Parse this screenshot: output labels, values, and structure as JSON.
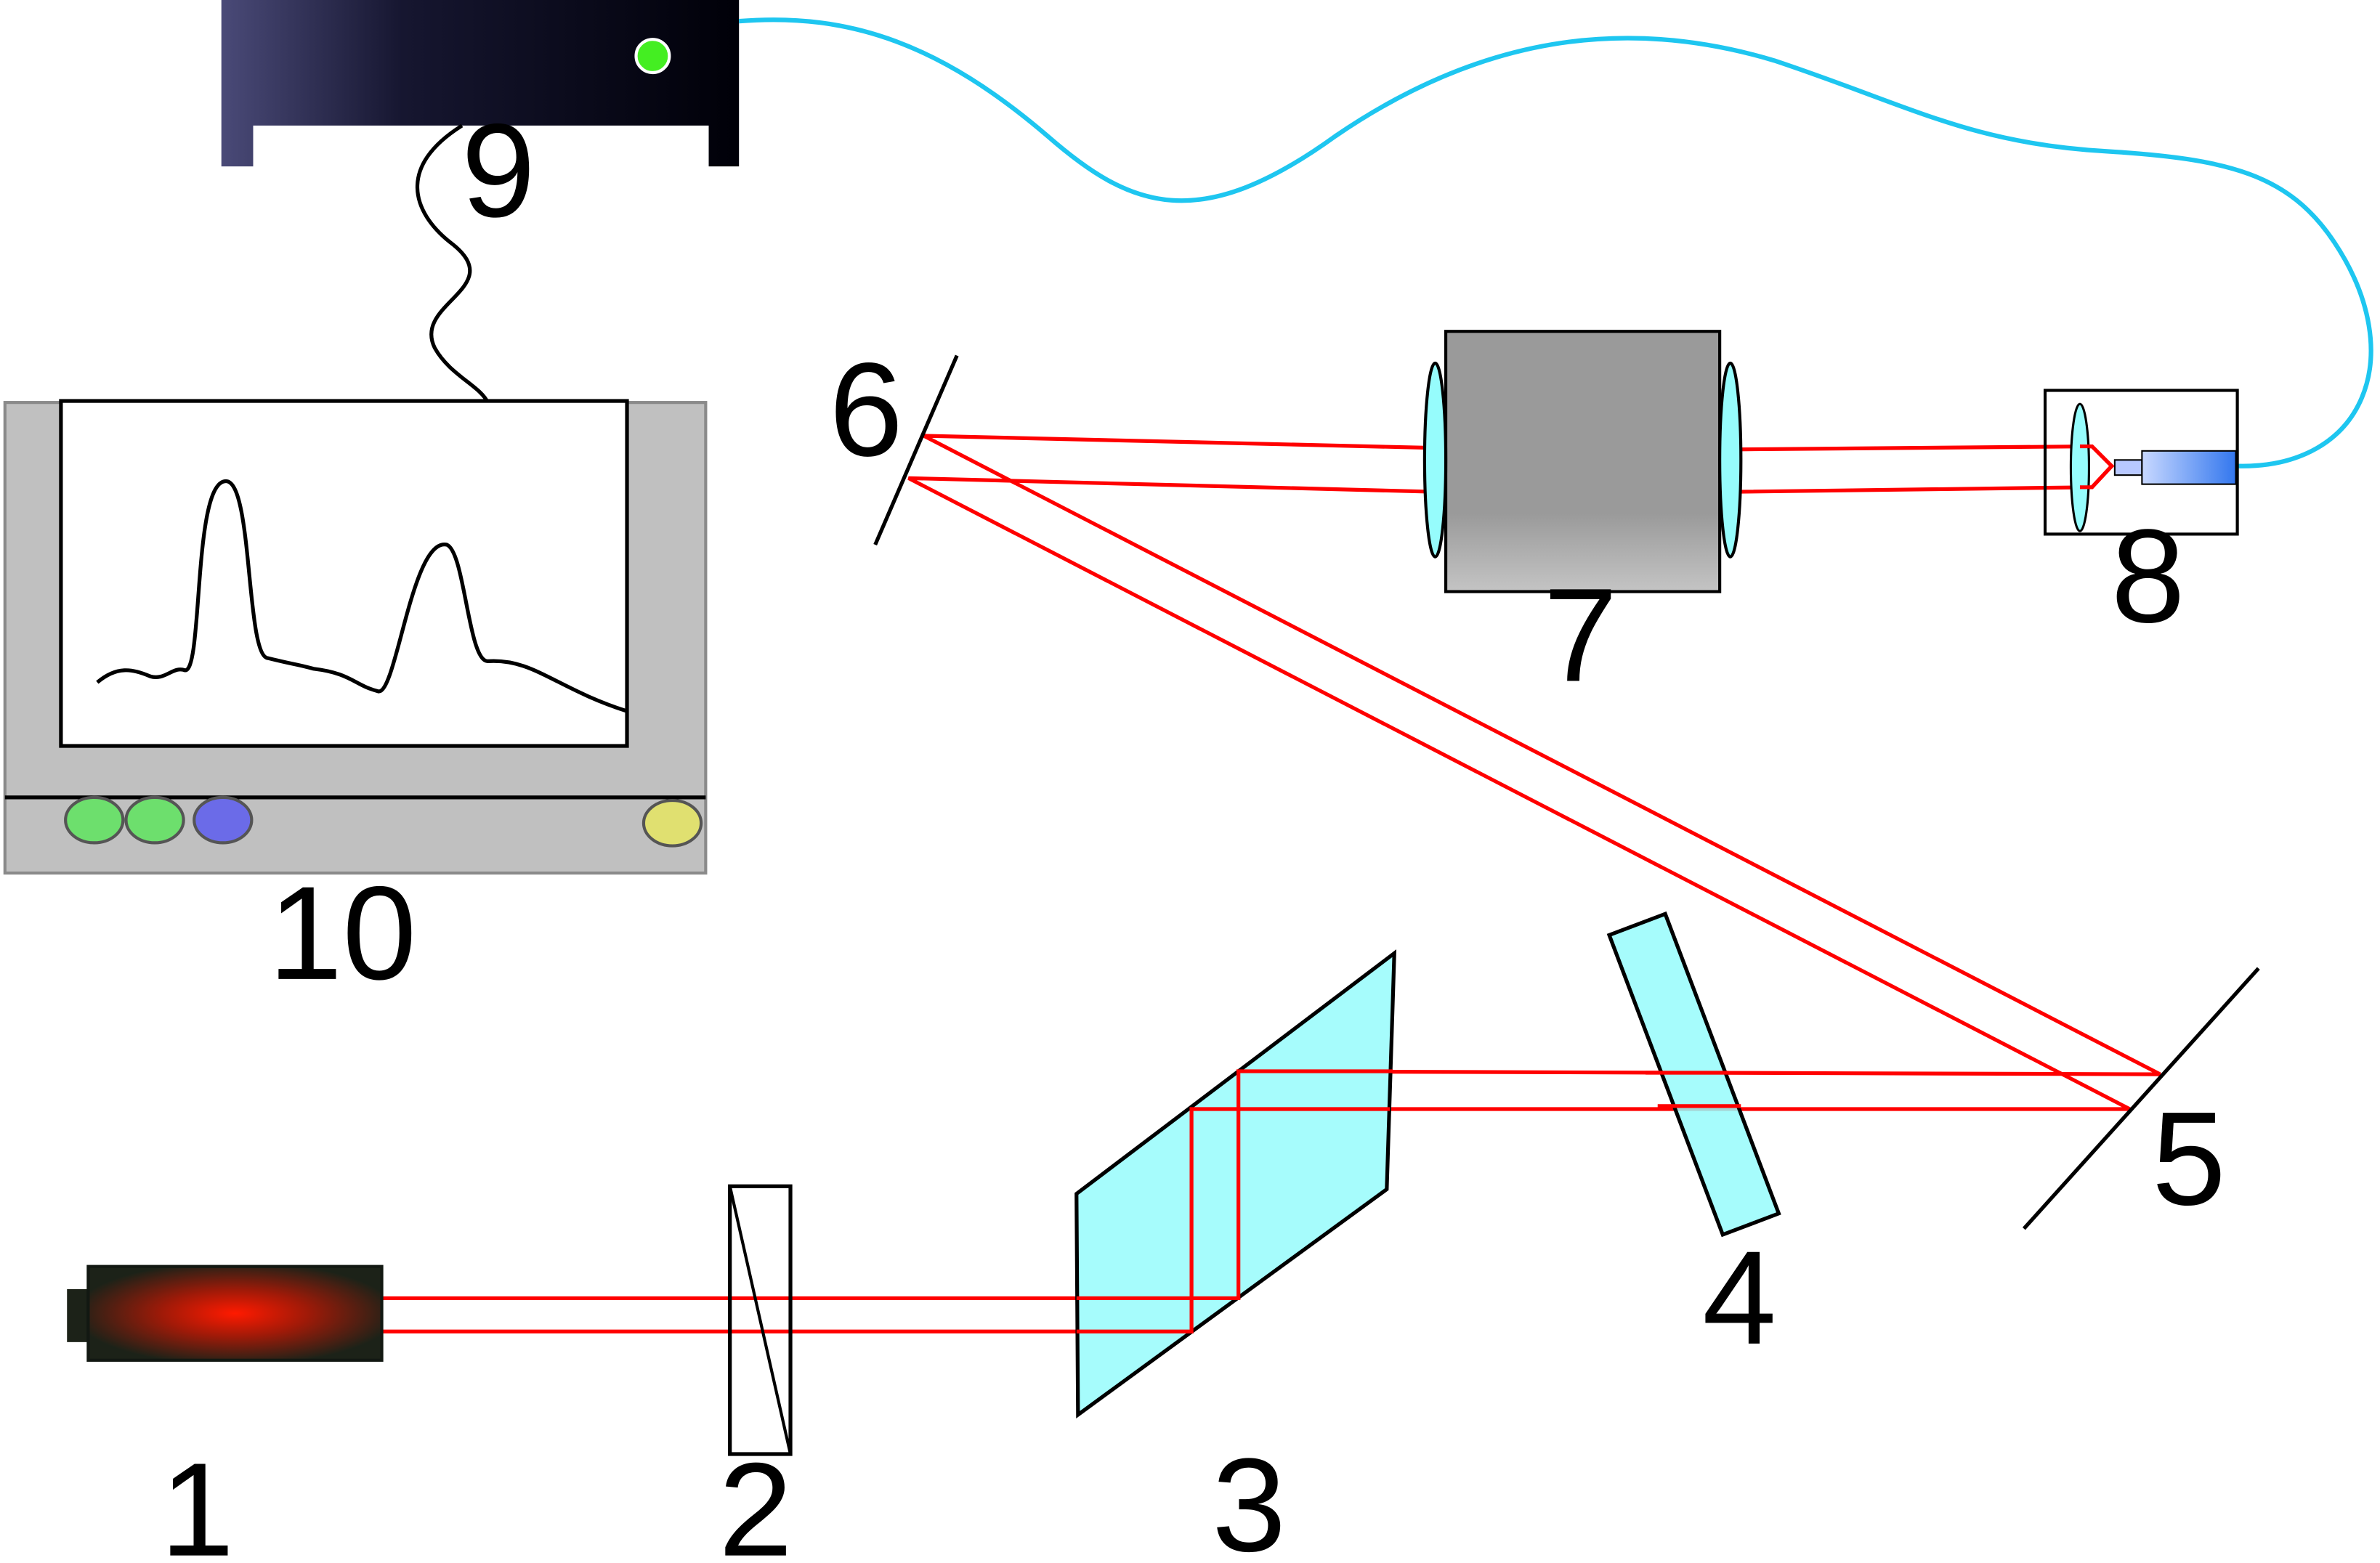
{
  "labels": {
    "laser": "1",
    "polarizer": "2",
    "rhomb_prism": "3",
    "crystal_plate": "4",
    "mirror_right": "5",
    "mirror_left": "6",
    "modulator": "7",
    "fiber_coupler": "8",
    "spectrometer": "9",
    "computer": "10"
  },
  "colors": {
    "beam": "#ff0000",
    "fiber": "#1ec6f0",
    "optic_fill": "#96fcfc",
    "housing_gray": "#c0c0c0",
    "button_green": "#6ddf6d",
    "button_blue": "#6b6be8",
    "button_yellow": "#e0e070",
    "indicator_led": "#44ee22"
  },
  "icons": {
    "laser": "laser-tube-icon",
    "spectrometer": "spectrometer-box-icon",
    "computer": "monitor-icon"
  }
}
